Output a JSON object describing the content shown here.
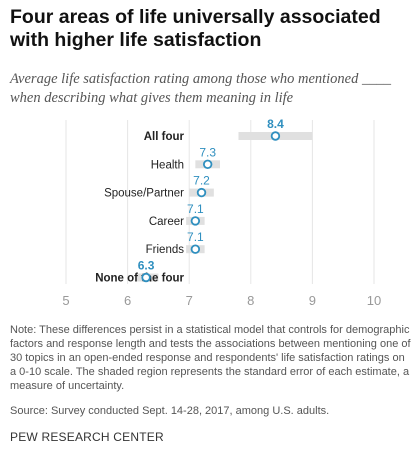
{
  "header": {
    "title": "Four areas of life universally associated with higher life satisfaction",
    "subtitle": "Average life satisfaction rating among those who mentioned ____ when describing what gives them meaning in life"
  },
  "chart_data": {
    "type": "dot",
    "xlim": [
      5,
      10
    ],
    "ticks": [
      5,
      6,
      7,
      8,
      9,
      10
    ],
    "grid": true,
    "categories": [
      "All four",
      "Health",
      "Spouse/Partner",
      "Career",
      "Friends",
      "None of the four"
    ],
    "values": [
      8.4,
      7.3,
      7.2,
      7.1,
      7.1,
      6.3
    ],
    "value_labels": [
      "8.4",
      "7.3",
      "7.2",
      "7.1",
      "7.1",
      "6.3"
    ],
    "error_ranges": [
      [
        7.8,
        9.0
      ],
      [
        7.1,
        7.5
      ],
      [
        7.0,
        7.4
      ],
      [
        6.95,
        7.25
      ],
      [
        6.95,
        7.25
      ],
      [
        6.15,
        6.5
      ]
    ],
    "bold_categories": [
      "All four",
      "None of the four"
    ],
    "colors": {
      "dot": "#2f8fbf",
      "error_band": "#e0e0e0",
      "grid": "#e6e6e6",
      "tick": "#999999",
      "label": "#222222"
    }
  },
  "notes": {
    "note": "Note: These differences persist in a statistical model that controls for demographic factors and response length and tests the associations between mentioning one of 30 topics in an open-ended response and respondents' life satisfaction ratings on a 0-10 scale. The shaded region represents the standard error of each estimate, a measure of uncertainty.",
    "source": "Source: Survey conducted Sept. 14-28, 2017, among U.S. adults."
  },
  "footer": {
    "brand": "PEW RESEARCH CENTER"
  }
}
